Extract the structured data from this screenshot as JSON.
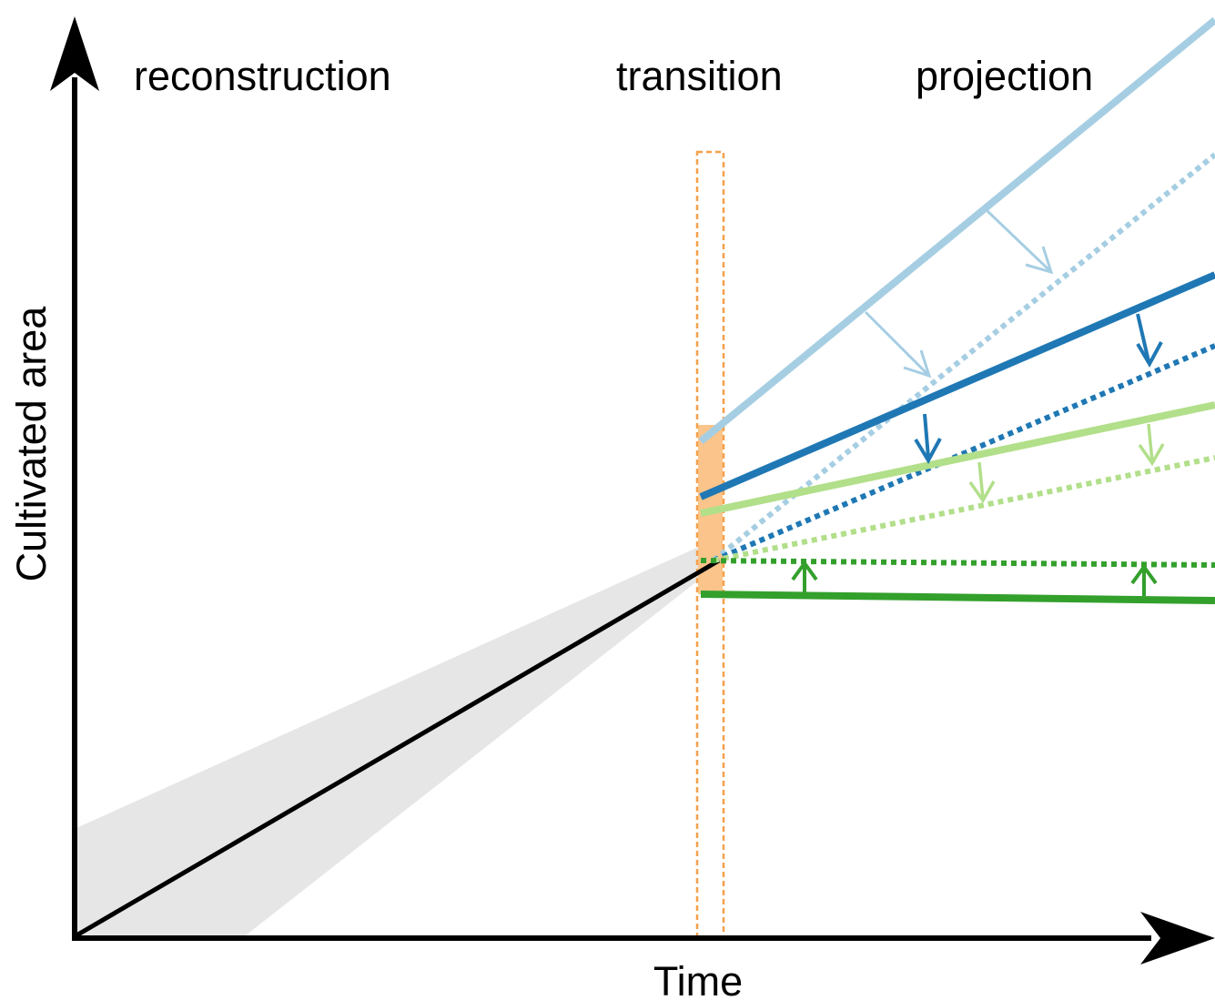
{
  "diagram": {
    "phases": {
      "reconstruction": "reconstruction",
      "transition": "transition",
      "projection": "projection"
    },
    "axes": {
      "x_label": "Time",
      "y_label": "Cultivated area"
    },
    "colors": {
      "axis": "#000000",
      "historical": "#000000",
      "uncertainty_band": "#e6e6e6",
      "transition_box": "#f5a04a",
      "transition_fill": "#fbc48a",
      "light_blue": "#a6cee3",
      "dark_blue": "#1f78b4",
      "light_green": "#b2df8a",
      "dark_green": "#33a02c"
    },
    "projection_lines": [
      {
        "id": "light-blue",
        "color": "light_blue",
        "style": "solid"
      },
      {
        "id": "light-blue",
        "color": "light_blue",
        "style": "dotted"
      },
      {
        "id": "dark-blue",
        "color": "dark_blue",
        "style": "solid"
      },
      {
        "id": "dark-blue",
        "color": "dark_blue",
        "style": "dotted"
      },
      {
        "id": "light-green",
        "color": "light_green",
        "style": "solid"
      },
      {
        "id": "light-green",
        "color": "light_green",
        "style": "dotted"
      },
      {
        "id": "dark-green",
        "color": "dark_green",
        "style": "solid"
      },
      {
        "id": "dark-green",
        "color": "dark_green",
        "style": "dotted"
      }
    ],
    "icons": [
      "y-axis-arrow-icon",
      "x-axis-arrow-icon",
      "adjustment-arrow-icon"
    ]
  }
}
